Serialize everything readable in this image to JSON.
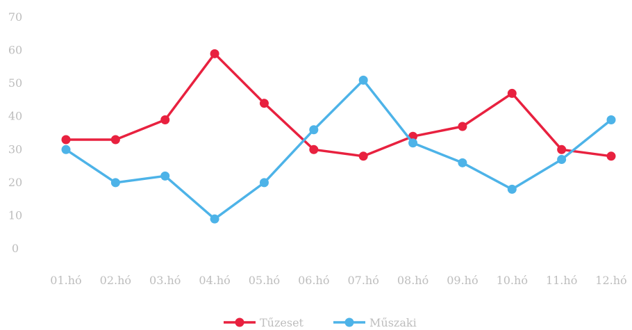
{
  "chart_data": {
    "type": "line",
    "categories": [
      "01.hó",
      "02.hó",
      "03.hó",
      "04.hó",
      "05.hó",
      "06.hó",
      "07.hó",
      "08.hó",
      "09.hó",
      "10.hó",
      "11.hó",
      "12.hó"
    ],
    "series": [
      {
        "name": "Tűzeset",
        "color": "#e8213f",
        "values": [
          33,
          33,
          39,
          59,
          44,
          30,
          28,
          34,
          37,
          47,
          30,
          28
        ]
      },
      {
        "name": "Műszaki",
        "color": "#4db3e8",
        "values": [
          30,
          20,
          22,
          9,
          20,
          36,
          51,
          32,
          26,
          18,
          27,
          39
        ]
      }
    ],
    "yticks": [
      "0",
      "10",
      "20",
      "30",
      "40",
      "50",
      "60",
      "70"
    ],
    "ylim": [
      0,
      70
    ],
    "grid": false,
    "legend": "bottom-center"
  }
}
